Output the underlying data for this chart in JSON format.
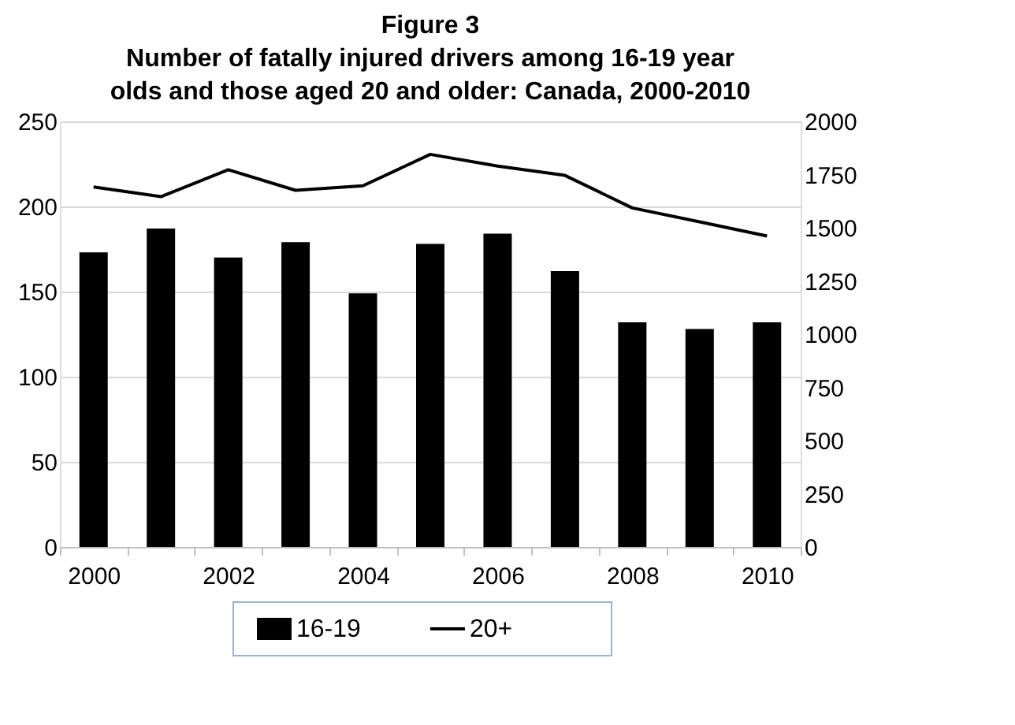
{
  "chart_data": {
    "type": "bar",
    "title": "Figure 3",
    "subtitle": "Number of fatally injured drivers among 16-19 year olds and those aged 20 and older: Canada, 2000-2010",
    "categories": [
      "2000",
      null,
      "2002",
      null,
      "2004",
      null,
      "2006",
      null,
      "2008",
      null,
      "2010"
    ],
    "series": [
      {
        "name": "16-19",
        "color": "#000000",
        "values": [
          173,
          187,
          170,
          179,
          149,
          178,
          184,
          162,
          132,
          128,
          132
        ]
      },
      {
        "name": "20+",
        "type": "line",
        "axis": "y2",
        "color": "#000000",
        "values": [
          1692,
          1646,
          1773,
          1676,
          1697,
          1845,
          1790,
          1746,
          1593,
          1528,
          1461
        ]
      }
    ],
    "ylim": [
      0,
      250
    ],
    "yticks": [
      0,
      50,
      100,
      150,
      200,
      250
    ],
    "y2lim": [
      0,
      2000
    ],
    "y2ticks": [
      0,
      250,
      500,
      750,
      1000,
      1250,
      1500,
      1750,
      2000
    ],
    "grid": "y",
    "legend": "bottom"
  }
}
